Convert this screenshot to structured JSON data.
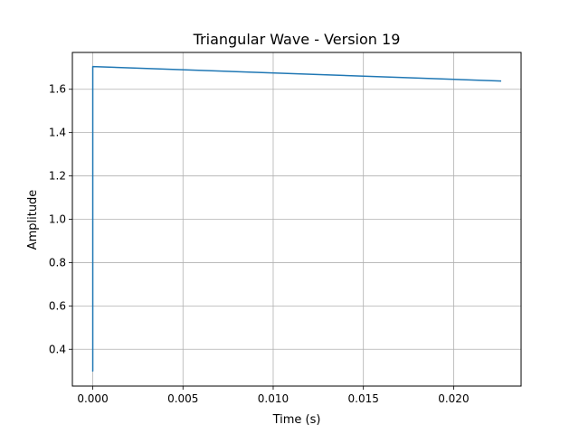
{
  "chart_data": {
    "type": "line",
    "title": "Triangular Wave - Version 19",
    "xlabel": "Time (s)",
    "ylabel": "Amplitude",
    "xlim": [
      -0.00113,
      0.02374
    ],
    "ylim": [
      0.23,
      1.77
    ],
    "grid": true,
    "x_ticks": [
      {
        "value": 0.0,
        "label": "0.000"
      },
      {
        "value": 0.005,
        "label": "0.005"
      },
      {
        "value": 0.01,
        "label": "0.010"
      },
      {
        "value": 0.015,
        "label": "0.015"
      },
      {
        "value": 0.02,
        "label": "0.020"
      }
    ],
    "y_ticks": [
      {
        "value": 0.4,
        "label": "0.4"
      },
      {
        "value": 0.6,
        "label": "0.6"
      },
      {
        "value": 0.8,
        "label": "0.8"
      },
      {
        "value": 1.0,
        "label": "1.0"
      },
      {
        "value": 1.2,
        "label": "1.2"
      },
      {
        "value": 1.4,
        "label": "1.4"
      },
      {
        "value": 1.6,
        "label": "1.6"
      }
    ],
    "series": [
      {
        "color": "#1f77b4",
        "x": [
          0.0,
          5e-07,
          5e-07,
          0.0226
        ],
        "y": [
          0.3,
          0.3,
          1.705,
          1.638
        ]
      }
    ]
  }
}
